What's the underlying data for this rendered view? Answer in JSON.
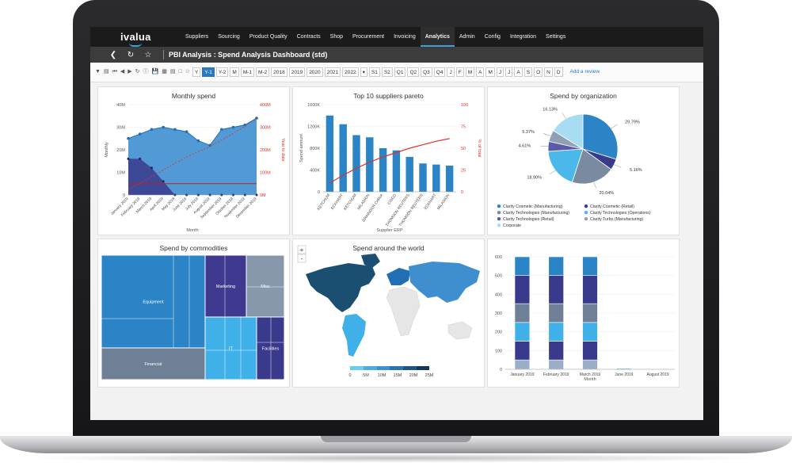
{
  "app": {
    "logo": "ivalua",
    "page_title": "PBI Analysis : Spend Analysis Dashboard (std)"
  },
  "nav": [
    "Suppliers",
    "Sourcing",
    "Product Quality",
    "Contracts",
    "Shop",
    "Procurement",
    "Invoicing",
    "Analytics",
    "Admin",
    "Config",
    "Integration",
    "Settings"
  ],
  "nav_active": "Analytics",
  "toolbar": {
    "range_buttons": [
      "Y",
      "Y-1",
      "Y-2",
      "M",
      "M-1",
      "M-2"
    ],
    "selected_range": "Y-1",
    "years": [
      "2018",
      "2019",
      "2020",
      "2021",
      "2022"
    ],
    "semesters": [
      "S1",
      "S2"
    ],
    "quarters": [
      "Q1",
      "Q2",
      "Q3",
      "Q4"
    ],
    "months": [
      "J",
      "F",
      "M",
      "A",
      "M",
      "J",
      "J",
      "A",
      "S",
      "O",
      "N",
      "D"
    ],
    "add_review": "Add a review"
  },
  "colors": {
    "primary": "#2a84c6",
    "dark": "#3a3a8c",
    "gray": "#7a8aa0",
    "light": "#9fd8f0",
    "red": "#e03030"
  },
  "chart_data": [
    {
      "type": "area",
      "title": "Monthly spend",
      "xlabel": "Month",
      "ylabel": "Monthly",
      "y2label": "Year to date",
      "categories": [
        "January 2019",
        "February 2019",
        "March 2019",
        "April 2019",
        "May 2019",
        "June 2019",
        "July 2019",
        "August 2019",
        "September 2019",
        "October 2019",
        "November 2019",
        "December 2019"
      ],
      "yticks": [
        "0",
        "10M",
        "20M",
        "30M",
        "40M"
      ],
      "y2ticks": [
        "0M",
        "100M",
        "200M",
        "300M",
        "400M"
      ],
      "series": [
        {
          "values": [
            25,
            27,
            29,
            30,
            29,
            28,
            24,
            22,
            29,
            30,
            31,
            34
          ]
        },
        {
          "values": [
            16,
            16,
            12,
            6,
            0,
            0,
            0,
            0,
            0,
            0,
            0,
            0
          ]
        }
      ],
      "ytd_values": [
        25,
        52,
        81,
        111,
        140,
        168,
        192,
        214,
        243,
        273,
        304,
        338
      ],
      "target": [
        50,
        50,
        50,
        50,
        50,
        50,
        50,
        50,
        50,
        50,
        50,
        50
      ]
    },
    {
      "type": "bar",
      "title": "Top 10 suppliers pareto",
      "xlabel": "Supplier ERP",
      "ylabel": "Spend amount",
      "y2label": "% of total",
      "categories": [
        "KETCHUM",
        "ECKHART",
        "KETCHUM",
        "MILADION",
        "GRAINGER CHINA",
        "CISCO",
        "THOMSON REUTERS",
        "THOMSON REUTERS",
        "ECKHART",
        "MILADION"
      ],
      "yticks": [
        "0",
        "400K",
        "800K",
        "1200K",
        "1600K"
      ],
      "y2ticks": [
        "0",
        "25",
        "50",
        "75",
        "100"
      ],
      "values": [
        3.5,
        3.1,
        2.6,
        2.5,
        2.0,
        1.9,
        1.6,
        1.3,
        1.25,
        1.2
      ],
      "ylim": [
        0,
        4
      ],
      "cumulative_pct": [
        10,
        19,
        27,
        34,
        40,
        45,
        50,
        54,
        58,
        61
      ]
    },
    {
      "type": "pie",
      "title": "Spend by organization",
      "labels": [
        "Clarity Cosmetic (Manufacturing)",
        "Clarity Cosmetic (Retail)",
        "Clarity Technologies (Manufacturing)",
        "Clarity Technologies (Operations)",
        "Clarity Technologies (Retail)",
        "Clarity Turbo (Manufacturing)",
        "Corporate"
      ],
      "values": [
        29.79,
        5.16,
        20.04,
        18.9,
        4.61,
        5.37,
        16.13
      ],
      "value_labels": [
        "29.79%",
        "5.16%",
        "20.04%",
        "18.90%",
        "4.61%",
        "5.37%",
        "16.13%"
      ],
      "colors": [
        "#2a84c6",
        "#3a3a8c",
        "#7a8aa0",
        "#4ab8ea",
        "#5a5aa8",
        "#90a0b4",
        "#a8dcf2"
      ]
    },
    {
      "type": "heatmap",
      "title": "Spend by commodities",
      "cells": [
        "Equipment",
        "Marketing",
        "Misc",
        "Financial",
        "IT",
        "Facilities"
      ]
    },
    {
      "type": "map",
      "title": "Spend around the world",
      "legend_ticks": [
        "0",
        "5M",
        "10M",
        "15M",
        "20M",
        "25M"
      ],
      "zoom_in": "+",
      "zoom_out": "-"
    },
    {
      "type": "bar",
      "stacked": true,
      "title": "",
      "xlabel": "Month",
      "categories": [
        "January 2019",
        "February 2019",
        "March 2019",
        "June 2019",
        "August 2019"
      ],
      "yticks": [
        "0",
        "100",
        "200",
        "300",
        "400",
        "500",
        "600"
      ],
      "ylim": [
        0,
        600
      ],
      "series": [
        {
          "values": [
            50,
            50,
            50,
            0,
            0
          ]
        },
        {
          "values": [
            100,
            100,
            100,
            0,
            0
          ]
        },
        {
          "values": [
            100,
            100,
            100,
            5,
            0
          ]
        },
        {
          "values": [
            100,
            100,
            100,
            0,
            0
          ]
        },
        {
          "values": [
            150,
            150,
            150,
            0,
            0
          ]
        },
        {
          "values": [
            100,
            100,
            100,
            0,
            0
          ]
        }
      ]
    }
  ]
}
